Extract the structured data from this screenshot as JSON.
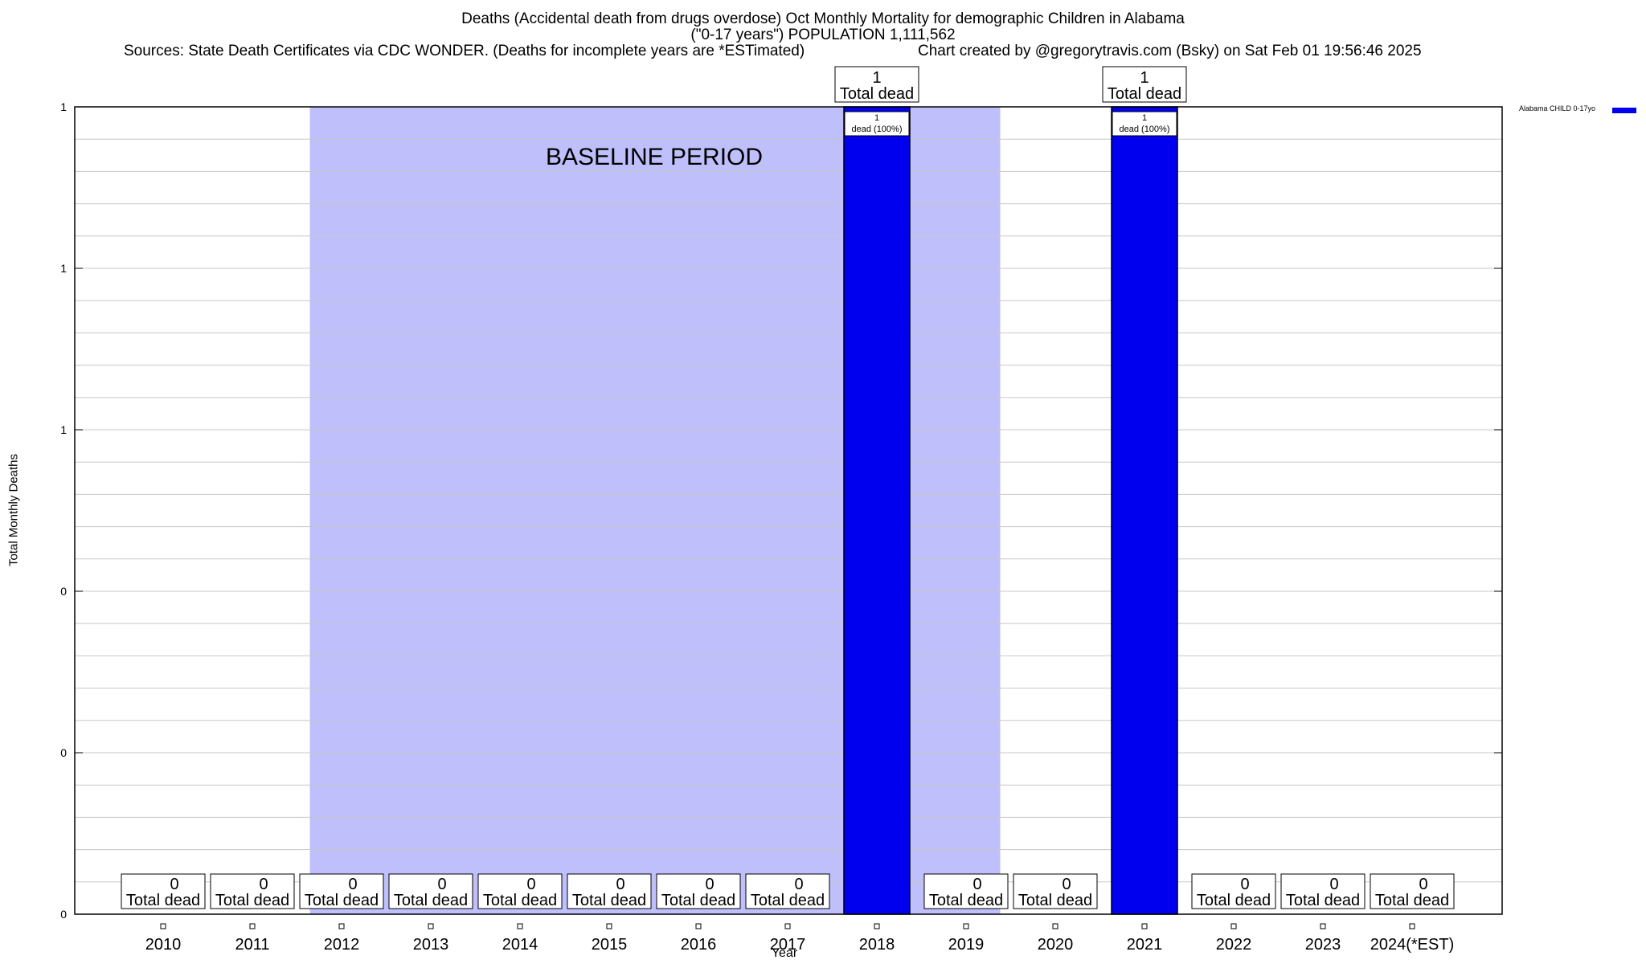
{
  "header": {
    "title_line1": "Deaths (Accidental death from drugs overdose) Oct Monthly Mortality for demographic Children in Alabama",
    "title_line2": "(\"0-17 years\") POPULATION 1,111,562",
    "sources": "Sources: State Death Certificates via CDC WONDER. (Deaths for incomplete years are *ESTimated)",
    "credit": "Chart created by @gregorytravis.com (Bsky) on Sat Feb 01 19:56:46 2025"
  },
  "chart_data": {
    "type": "bar",
    "title": "Deaths (Accidental death from drugs overdose) Oct Monthly Mortality for demographic Children in Alabama",
    "xlabel": "Year",
    "ylabel": "Total Monthly Deaths",
    "categories": [
      "2010",
      "2011",
      "2012",
      "2013",
      "2014",
      "2015",
      "2016",
      "2017",
      "2018",
      "2019",
      "2020",
      "2021",
      "2022",
      "2023",
      "2024(*EST)"
    ],
    "series": [
      {
        "name": "Alabama CHILD 0-17yo",
        "color": "#0000ee",
        "values": [
          0,
          0,
          0,
          0,
          0,
          0,
          0,
          0,
          1,
          0,
          0,
          1,
          0,
          0,
          0
        ]
      }
    ],
    "total_label": "Total dead",
    "inner_label_prefix": "dead",
    "inner_labels": {
      "2018": "(100%)",
      "2021": "(100%)"
    },
    "ylim": [
      0,
      1
    ],
    "y_tick_labels": [
      "0",
      "0",
      "0",
      "1",
      "1",
      "1"
    ],
    "grid": true,
    "baseline": {
      "label": "BASELINE PERIOD",
      "start_category": "2012",
      "end_category": "2019",
      "color": "#bfbffc"
    },
    "legend_position": "top-right"
  }
}
